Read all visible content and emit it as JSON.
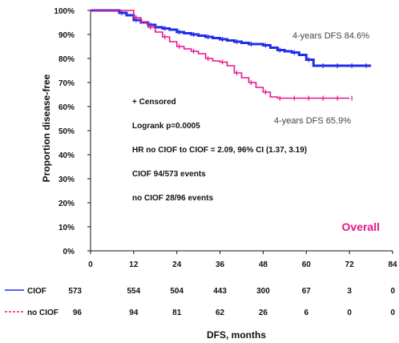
{
  "chart_data": {
    "type": "line",
    "ylabel": "Proportion disease-free",
    "xlabel": "DFS, months",
    "xlim": [
      0,
      84
    ],
    "ylim": [
      0,
      100
    ],
    "x_ticks": [
      "0",
      "12",
      "24",
      "36",
      "48",
      "60",
      "72",
      "84"
    ],
    "y_ticks": [
      "0%",
      "10%",
      "20%",
      "30%",
      "40%",
      "50%",
      "60%",
      "70%",
      "80%",
      "90%",
      "100%"
    ],
    "series": [
      {
        "name": "CIOF",
        "color": "#1f2eea",
        "x": [
          0,
          6,
          8,
          10,
          12,
          14,
          16,
          18,
          20,
          22,
          24,
          26,
          28,
          30,
          32,
          34,
          36,
          38,
          40,
          42,
          44,
          46,
          48,
          50,
          52,
          54,
          56,
          58,
          60,
          62,
          64,
          66,
          68,
          70,
          72,
          74,
          76,
          78
        ],
        "y": [
          100,
          100,
          99,
          98,
          96,
          95,
          94,
          93,
          92.5,
          92,
          91,
          90.5,
          90,
          89.5,
          89,
          88.5,
          88,
          87.5,
          87,
          86.5,
          86,
          86,
          85.5,
          84.5,
          83.5,
          83,
          82.5,
          81.5,
          79.5,
          77,
          77,
          77,
          77,
          77,
          77,
          77,
          77,
          77
        ]
      },
      {
        "name": "no CIOF",
        "color": "#e8138b",
        "x": [
          0,
          10,
          12,
          14,
          16,
          18,
          20,
          22,
          24,
          26,
          28,
          30,
          32,
          34,
          36,
          38,
          40,
          42,
          44,
          46,
          48,
          50,
          52,
          54,
          56,
          58,
          60,
          62,
          64,
          66,
          68,
          70,
          72
        ],
        "y": [
          100,
          100,
          97,
          95,
          93,
          91,
          89,
          87,
          85,
          84,
          83,
          82,
          80,
          79,
          78.5,
          77,
          74,
          72,
          70,
          68,
          66,
          64,
          63.5,
          63.5,
          63.5,
          63.5,
          63.5,
          63.5,
          63.5,
          63.5,
          63.5,
          63.5,
          63.5
        ]
      }
    ],
    "annotations": {
      "dfs_ciof": "4-years DFS 84.6%",
      "dfs_no_ciof": "4-years DFS 65.9%",
      "censored": "+ Censored",
      "logrank": "Logrank p=0.0005",
      "hr": "HR no CIOF to CIOF = 2.09, 96% CI (1.37, 3.19)",
      "ciof_events": "CIOF 94/573 events",
      "no_ciof_events": "no CIOF 28/96 events",
      "overall": "Overall"
    },
    "risk_table": {
      "rows": [
        {
          "label": "CIOF",
          "color": "#1f2eea",
          "values": [
            "573",
            "554",
            "504",
            "443",
            "300",
            "67",
            "3",
            "0"
          ]
        },
        {
          "label": "no CIOF",
          "color": "#e8138b",
          "values": [
            "96",
            "94",
            "81",
            "62",
            "26",
            "6",
            "0",
            "0"
          ]
        }
      ]
    }
  }
}
